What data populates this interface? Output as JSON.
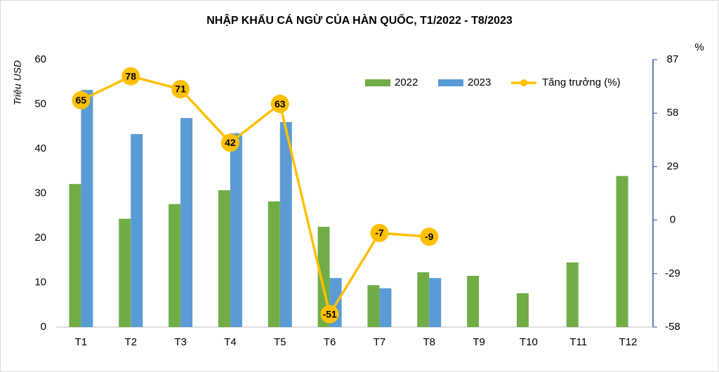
{
  "chart_data": {
    "type": "bar-line",
    "title": "NHẬP KHẨU CÁ NGỪ CỦA HÀN QUỐC, T1/2022 - T8/2023",
    "y_label": "Triệu USD",
    "y2_label": "%",
    "categories": [
      "T1",
      "T2",
      "T3",
      "T4",
      "T5",
      "T6",
      "T7",
      "T8",
      "T9",
      "T10",
      "T11",
      "T12"
    ],
    "series": [
      {
        "name": "2022",
        "type": "bar",
        "color": "#70ad47",
        "values": [
          32.1,
          24.3,
          27.6,
          30.7,
          28.2,
          22.5,
          9.4,
          12.3,
          11.5,
          7.6,
          14.5,
          33.9
        ]
      },
      {
        "name": "2023",
        "type": "bar",
        "color": "#5b9bd5",
        "values": [
          53.2,
          43.3,
          46.9,
          43.5,
          46.0,
          11.0,
          8.7,
          11.0,
          null,
          null,
          null,
          null
        ]
      },
      {
        "name": "Tăng trưởng (%)",
        "type": "line",
        "axis": "y2",
        "color": "#ffc000",
        "values": [
          65,
          78,
          71,
          42,
          63,
          -51,
          -7,
          -9,
          null,
          null,
          null,
          null
        ]
      }
    ],
    "ylim": [
      0,
      60
    ],
    "yticks": [
      0,
      10,
      20,
      30,
      40,
      50,
      60
    ],
    "y2lim": [
      -58,
      87
    ],
    "y2ticks": [
      -58,
      -29,
      0,
      29,
      58,
      87
    ],
    "grid": false,
    "legend": "top-right"
  }
}
